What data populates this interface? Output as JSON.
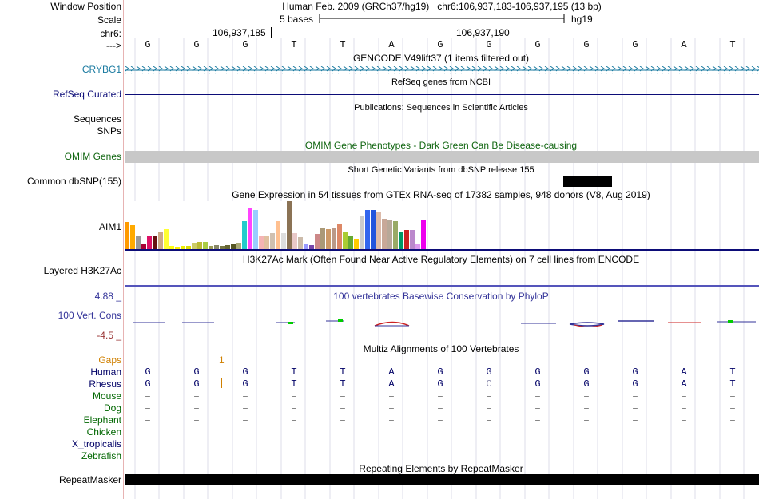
{
  "header": {
    "window_position_label": "Window Position",
    "assembly_text": "Human Feb. 2009 (GRCh37/hg19)   chr6:106,937,183-106,937,195 (13 bp)",
    "scale_label": "Scale",
    "scale_text": "5 bases",
    "scale_db": "hg19",
    "chrom_label": "chr6:",
    "pos_tick_1": "106,937,185",
    "pos_tick_2": "106,937,190",
    "strand_label": "--->"
  },
  "bases": [
    "G",
    "G",
    "G",
    "T",
    "T",
    "A",
    "G",
    "G",
    "G",
    "G",
    "G",
    "A",
    "T"
  ],
  "tracks": {
    "gencode_title": "GENCODE V49lift37 (1 items filtered out)",
    "crybg1_label": "CRYBG1",
    "refseq_title": "RefSeq genes from NCBI",
    "refseq_label": "RefSeq Curated",
    "publications_title": "Publications: Sequences in Scientific Articles",
    "sequences_label": "Sequences",
    "snps_label": "SNPs",
    "omim_title": "OMIM Gene Phenotypes - Dark Green Can Be Disease-causing",
    "omim_label": "OMIM Genes",
    "dbsnp_title": "Short Genetic Variants from dbSNP release 155",
    "dbsnp_label": "Common dbSNP(155)",
    "gtex_title": "Gene Expression in 54 tissues from GTEx RNA-seq of 17382 samples, 948 donors (V8, Aug 2019)",
    "gtex_label": "AIM1",
    "h3k27_title": "H3K27Ac Mark (Often Found Near Active Regulatory Elements) on 7 cell lines from ENCODE",
    "h3k27_label": "Layered H3K27Ac",
    "phylop_max": "4.88 _",
    "phylop_min": "-4.5 _",
    "phylop_label": "100 Vert. Cons",
    "phylop_title": "100 vertebrates Basewise Conservation by PhyloP",
    "multiz_title": "Multiz Alignments of 100 Vertebrates",
    "gaps_label": "Gaps",
    "gaps_count": "1",
    "repeat_title": "Repeating Elements by RepeatMasker",
    "repeat_label": "RepeatMasker"
  },
  "gtex_heights": [
    34,
    30,
    17,
    7,
    16,
    16,
    21,
    25,
    4,
    3,
    4,
    4,
    8,
    9,
    9,
    4,
    5,
    4,
    5,
    6,
    8,
    35,
    51,
    49,
    16,
    17,
    20,
    35,
    20,
    60,
    20,
    15,
    7,
    5,
    19,
    27,
    25,
    27,
    31,
    22,
    16,
    13,
    41,
    49,
    49,
    46,
    38,
    36,
    35,
    22,
    24,
    24,
    6,
    36
  ],
  "gtex_colors": [
    "#ff9900",
    "#ffaa00",
    "#999999",
    "#aa0033",
    "#dd1166",
    "#661111",
    "#ccaa88",
    "#ffff33",
    "#ffff11",
    "#ffee00",
    "#eeee00",
    "#dddd00",
    "#cccc66",
    "#bbbb33",
    "#aacc44",
    "#999955",
    "#888866",
    "#777744",
    "#666633",
    "#555522",
    "#aaaa77",
    "#22cccc",
    "#ff44ff",
    "#99ccff",
    "#f4b4b4",
    "#e0c0a0",
    "#d0c0b0",
    "#ffc090",
    "#dddddd",
    "#8b7355",
    "#e8c8c8",
    "#ccbbaa",
    "#9999ff",
    "#7744aa",
    "#cc8888",
    "#aa9977",
    "#cc9966",
    "#bb9988",
    "#dd8866",
    "#aacc33",
    "#66aa33",
    "#ffcc00",
    "#cccccc",
    "#3366ee",
    "#2255dd",
    "#ddbbaa",
    "#c8a898",
    "#b8a898",
    "#99aa66",
    "#009966",
    "#cc2222",
    "#bb88cc",
    "#dd99ee",
    "#ee00ee"
  ],
  "species": [
    {
      "name": "Human",
      "color": "#000066",
      "row": [
        "G",
        "G",
        "G",
        "T",
        "T",
        "A",
        "G",
        "G",
        "G",
        "G",
        "G",
        "A",
        "T"
      ]
    },
    {
      "name": "Rhesus",
      "color": "#000066",
      "row": [
        "G",
        "G",
        "G",
        "T",
        "T",
        "A",
        "G",
        "C",
        "G",
        "G",
        "G",
        "A",
        "T"
      ]
    },
    {
      "name": "Mouse",
      "color": "#006600",
      "row": [
        "=",
        "=",
        "=",
        "=",
        "=",
        "=",
        "=",
        "=",
        "=",
        "=",
        "=",
        "=",
        "="
      ]
    },
    {
      "name": "Dog",
      "color": "#006600",
      "row": [
        "=",
        "=",
        "=",
        "=",
        "=",
        "=",
        "=",
        "=",
        "=",
        "=",
        "=",
        "=",
        "="
      ]
    },
    {
      "name": "Elephant",
      "color": "#006600",
      "row": [
        "=",
        "=",
        "=",
        "=",
        "=",
        "=",
        "=",
        "=",
        "=",
        "=",
        "=",
        "=",
        "="
      ]
    },
    {
      "name": "Chicken",
      "color": "#006600",
      "row": []
    },
    {
      "name": "X_tropicalis",
      "color": "#000066",
      "row": []
    },
    {
      "name": "Zebrafish",
      "color": "#006600",
      "row": []
    }
  ],
  "colors": {
    "gencode": "#1a7aa0",
    "refseq": "#0c0c78",
    "omim": "#116611",
    "omim_bar": "#c8c8c8",
    "h3k27": "#5555bb",
    "phylop_title": "#333399",
    "phylop_max": "#333399",
    "phylop_min": "#993333",
    "gaps": "#d08000",
    "black": "#000000"
  }
}
